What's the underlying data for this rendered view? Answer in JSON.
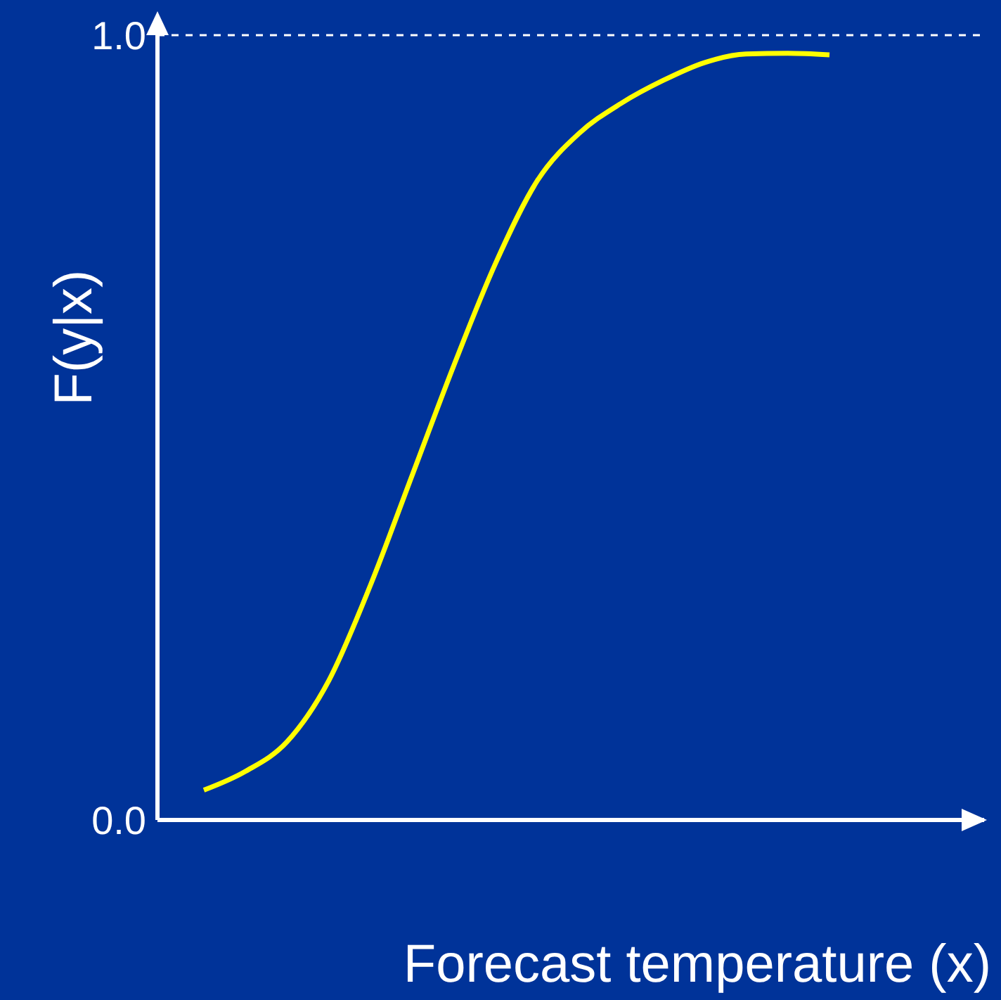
{
  "chart_data": {
    "type": "line",
    "ylabel": "F(y|x)",
    "xlabel": "Forecast temperature (x)",
    "categories": [
      null,
      null,
      null,
      null,
      null,
      null,
      null,
      null,
      null,
      null,
      null,
      null,
      null,
      null,
      null,
      null
    ],
    "series": [
      {
        "color": "#ffff00",
        "values": [
          0.038,
          0.062,
          0.1,
          0.178,
          0.3,
          0.44,
          0.58,
          0.71,
          0.815,
          0.875,
          0.913,
          0.942,
          0.965,
          0.976,
          0.977,
          0.975
        ]
      }
    ],
    "ylim": [
      0,
      1
    ],
    "yticks": [
      {
        "value": 0,
        "label": "0.0"
      },
      {
        "value": 1,
        "label": "1.0"
      }
    ],
    "ref_lines": [
      {
        "axis": "y",
        "value": 1,
        "color": "#ffffff",
        "line_style": "dashed"
      }
    ],
    "line_style": "solid"
  }
}
